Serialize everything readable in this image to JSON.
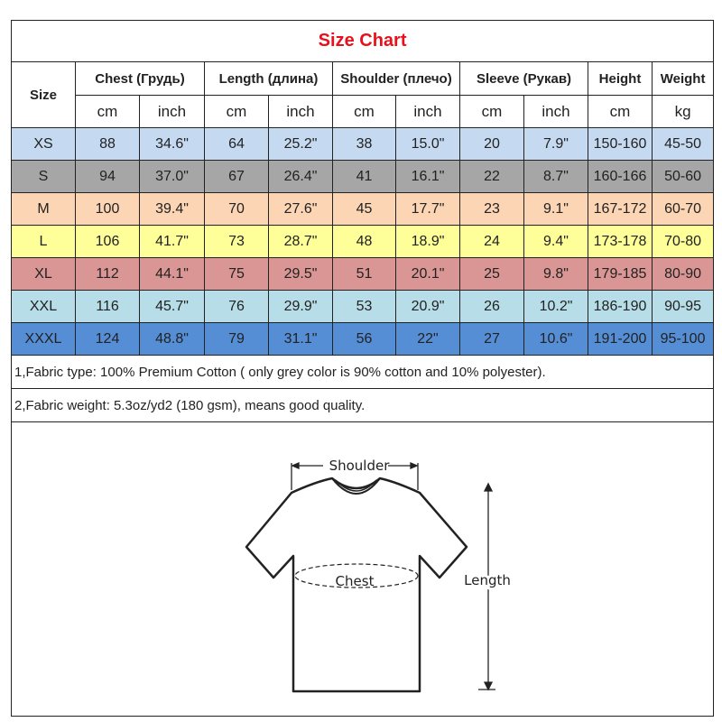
{
  "title": "Size Chart",
  "headers": {
    "size": "Size",
    "chest": "Chest  (Грудь)",
    "length": "Length (длина)",
    "shoulder": "Shoulder (плечо)",
    "sleeve": "Sleeve (Рукав)",
    "height": "Height",
    "weight": "Weight"
  },
  "units": [
    "cm",
    "inch",
    "cm",
    "inch",
    "cm",
    "inch",
    "cm",
    "inch",
    "cm",
    "kg"
  ],
  "rows": [
    {
      "color": "#c5d9f1",
      "cells": [
        "XS",
        "88",
        "34.6\"",
        "64",
        "25.2\"",
        "38",
        "15.0\"",
        "20",
        "7.9\"",
        "150-160",
        "45-50"
      ]
    },
    {
      "color": "#a6a6a6",
      "cells": [
        "S",
        "94",
        "37.0\"",
        "67",
        "26.4\"",
        "41",
        "16.1\"",
        "22",
        "8.7\"",
        "160-166",
        "50-60"
      ]
    },
    {
      "color": "#fcd5b5",
      "cells": [
        "M",
        "100",
        "39.4\"",
        "70",
        "27.6\"",
        "45",
        "17.7\"",
        "23",
        "9.1\"",
        "167-172",
        "60-70"
      ]
    },
    {
      "color": "#ffff99",
      "cells": [
        "L",
        "106",
        "41.7\"",
        "73",
        "28.7\"",
        "48",
        "18.9\"",
        "24",
        "9.4\"",
        "173-178",
        "70-80"
      ]
    },
    {
      "color": "#d99694",
      "cells": [
        "XL",
        "112",
        "44.1\"",
        "75",
        "29.5\"",
        "51",
        "20.1\"",
        "25",
        "9.8\"",
        "179-185",
        "80-90"
      ]
    },
    {
      "color": "#b7dee8",
      "cells": [
        "XXL",
        "116",
        "45.7\"",
        "76",
        "29.9\"",
        "53",
        "20.9\"",
        "26",
        "10.2\"",
        "186-190",
        "90-95"
      ]
    },
    {
      "color": "#558ed5",
      "cells": [
        "XXXL",
        "124",
        "48.8\"",
        "79",
        "31.1\"",
        "56",
        "22\"",
        "27",
        "10.6\"",
        "191-200",
        "95-100"
      ]
    }
  ],
  "notes": [
    "1,Fabric type: 100% Premium Cotton ( only grey color is 90% cotton and 10% polyester).",
    "2,Fabric weight: 5.3oz/yd2 (180 gsm), means good quality."
  ],
  "diagram": {
    "shoulder": "Shoulder",
    "chest": "Chest",
    "length": "Length"
  }
}
